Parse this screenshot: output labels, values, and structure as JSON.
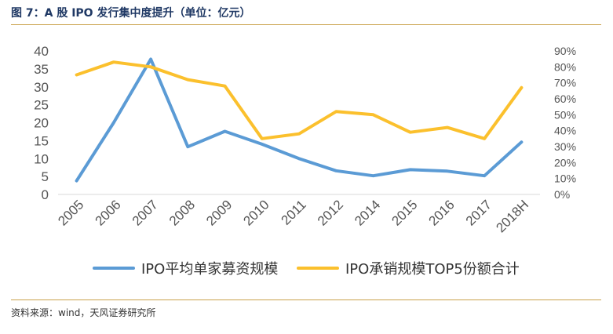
{
  "title": "图 7：A 股 IPO 发行集中度提升（单位：亿元）",
  "source": "资料来源：wind，天风证券研究所",
  "colors": {
    "series1": "#5b9bd5",
    "series2": "#fbc02d",
    "title": "#1f3864",
    "rule": "#c9a14a"
  },
  "chart_data": {
    "type": "line",
    "categories": [
      "2005",
      "2006",
      "2007",
      "2008",
      "2009",
      "2010",
      "2011",
      "2012",
      "2014",
      "2015",
      "2016",
      "2017",
      "2018H"
    ],
    "series": [
      {
        "name": "IPO平均单家募资规模",
        "axis": "left",
        "values": [
          3.8,
          20.0,
          37.7,
          13.3,
          17.6,
          14.0,
          10.0,
          6.6,
          5.2,
          6.9,
          6.5,
          5.2,
          14.6
        ]
      },
      {
        "name": "IPO承销规模TOP5份额合计",
        "axis": "right",
        "values": [
          0.75,
          0.83,
          0.8,
          0.72,
          0.68,
          0.35,
          0.38,
          0.52,
          0.5,
          0.39,
          0.42,
          0.35,
          0.67
        ]
      }
    ],
    "yticks_left": [
      "40",
      "35",
      "30",
      "25",
      "20",
      "15",
      "10",
      "5",
      "0"
    ],
    "yticks_right": [
      "90%",
      "80%",
      "70%",
      "60%",
      "50%",
      "40%",
      "30%",
      "20%",
      "10%",
      "0%"
    ],
    "ylim_left": [
      0,
      40
    ],
    "ylim_right": [
      0,
      0.9
    ],
    "grid": false,
    "legend_position": "bottom"
  }
}
